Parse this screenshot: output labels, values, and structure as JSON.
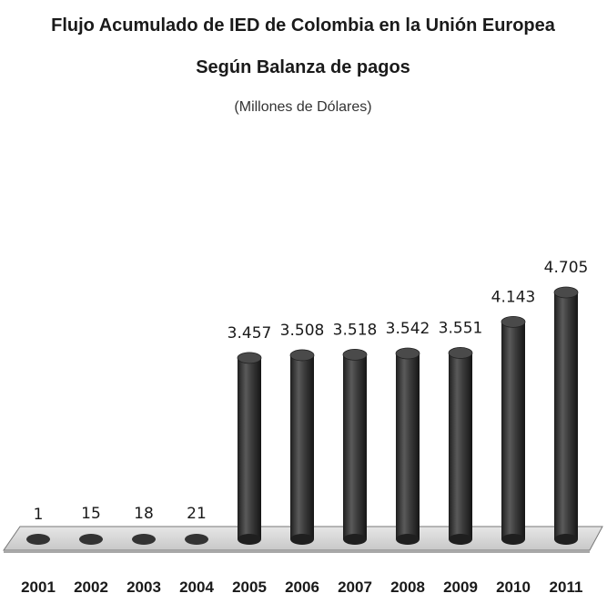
{
  "chart_data": {
    "type": "bar",
    "title": "Flujo Acumulado de IED de Colombia en la Unión Europea",
    "subtitle": "Según Balanza de pagos",
    "unit_label": "(Millones de Dólares)",
    "categories": [
      "2001",
      "2002",
      "2003",
      "2004",
      "2005",
      "2006",
      "2007",
      "2008",
      "2009",
      "2010",
      "2011"
    ],
    "values": [
      1,
      15,
      18,
      21,
      3457,
      3508,
      3518,
      3542,
      3551,
      4143,
      4705
    ],
    "value_labels": [
      "1",
      "15",
      "18",
      "21",
      "3.457",
      "3.508",
      "3.518",
      "3.542",
      "3.551",
      "4.143",
      "4.705"
    ],
    "ylim": [
      0,
      5000
    ],
    "grid": false,
    "legend": "none",
    "bar_color": "#3a3a3a",
    "floor_color": "#d9d9d9"
  }
}
